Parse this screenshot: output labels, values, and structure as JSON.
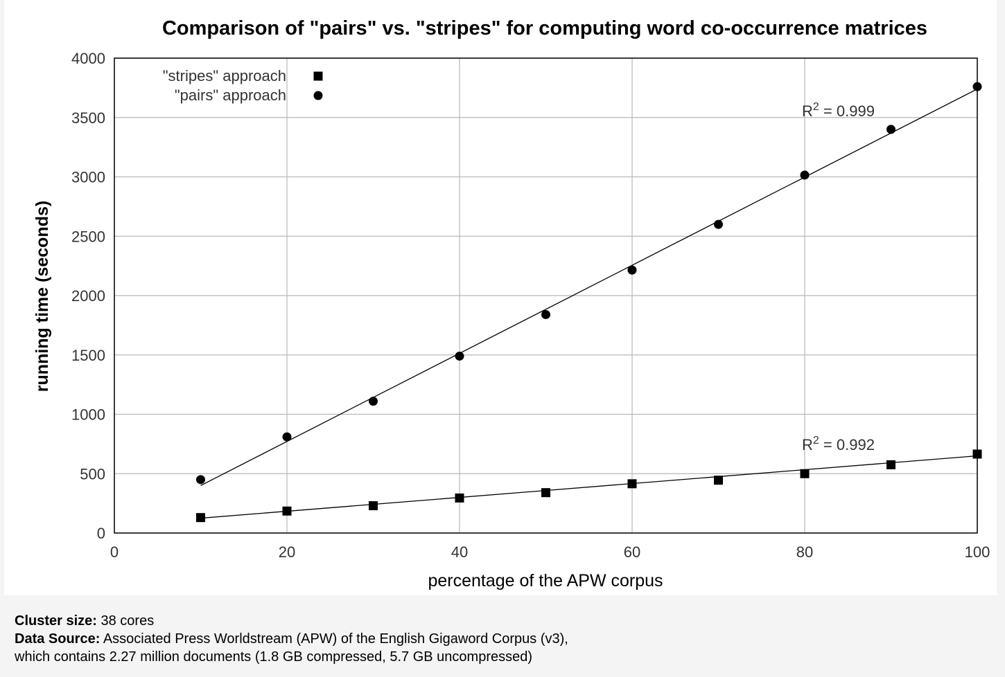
{
  "chart_data": {
    "type": "scatter",
    "title": "Comparison of \"pairs\" vs. \"stripes\" for computing word co-occurrence matrices",
    "xlabel": "percentage of the APW corpus",
    "ylabel": "running time (seconds)",
    "xlim": [
      0,
      100
    ],
    "ylim": [
      0,
      4000
    ],
    "xticks": [
      0,
      20,
      40,
      60,
      80,
      100
    ],
    "yticks": [
      0,
      500,
      1000,
      1500,
      2000,
      2500,
      3000,
      3500,
      4000
    ],
    "grid": true,
    "legend_position": "top-left",
    "series": [
      {
        "name": "\"stripes\" approach",
        "marker": "square",
        "x": [
          10,
          20,
          30,
          40,
          50,
          60,
          70,
          80,
          90,
          100
        ],
        "y": [
          130,
          185,
          230,
          295,
          340,
          415,
          445,
          500,
          575,
          665
        ],
        "fit": {
          "x": [
            10,
            100
          ],
          "y": [
            125,
            650
          ]
        },
        "annotation": {
          "prefix": "R",
          "sup": "2",
          "text": " = 0.992",
          "x": 80,
          "y": 700
        }
      },
      {
        "name": "\"pairs\" approach",
        "marker": "circle",
        "x": [
          10,
          20,
          30,
          40,
          50,
          60,
          70,
          80,
          90,
          100
        ],
        "y": [
          450,
          810,
          1110,
          1490,
          1840,
          2215,
          2600,
          3015,
          3400,
          3760
        ],
        "fit": {
          "x": [
            10,
            100
          ],
          "y": [
            400,
            3740
          ]
        },
        "annotation": {
          "prefix": "R",
          "sup": "2",
          "text": " = 0.999",
          "x": 80,
          "y": 3510
        }
      }
    ]
  },
  "caption": {
    "cluster_label": "Cluster size:",
    "cluster_value": " 38 cores",
    "source_label": "Data Source:",
    "source_value": " Associated Press Worldstream (APW) of the English Gigaword Corpus (v3),",
    "source_line2": "which contains 2.27 million documents (1.8 GB compressed, 5.7 GB uncompressed)"
  }
}
